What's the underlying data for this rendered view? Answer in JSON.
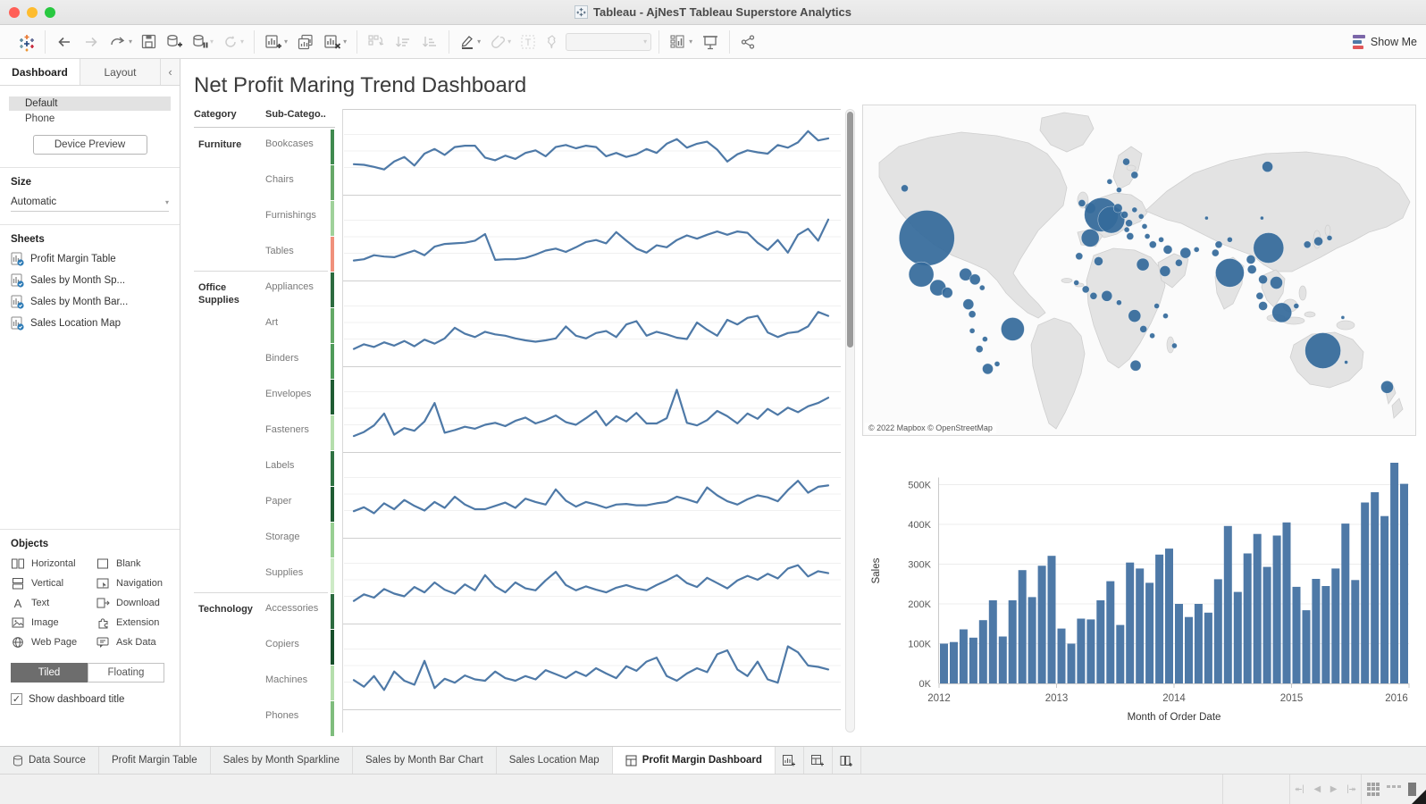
{
  "window": {
    "title": "Tableau - AjNesT Tableau Superstore Analytics"
  },
  "toolbar": {
    "show_me": "Show Me"
  },
  "sidebar": {
    "tabs": [
      {
        "label": "Dashboard",
        "active": true
      },
      {
        "label": "Layout",
        "active": false
      }
    ],
    "collapse_icon": "‹",
    "device": {
      "default_label": "Default",
      "phone_label": "Phone",
      "preview_button": "Device Preview"
    },
    "size": {
      "label": "Size",
      "value": "Automatic"
    },
    "sheets": {
      "label": "Sheets",
      "items": [
        "Profit Margin Table",
        "Sales by Month Sp...",
        "Sales by Month Bar...",
        "Sales Location Map"
      ]
    },
    "objects": {
      "label": "Objects",
      "items": [
        {
          "icon": "horizontal",
          "label": "Horizontal"
        },
        {
          "icon": "blank",
          "label": "Blank"
        },
        {
          "icon": "vertical",
          "label": "Vertical"
        },
        {
          "icon": "navigation",
          "label": "Navigation"
        },
        {
          "icon": "text",
          "label": "Text"
        },
        {
          "icon": "download",
          "label": "Download"
        },
        {
          "icon": "image",
          "label": "Image"
        },
        {
          "icon": "extension",
          "label": "Extension"
        },
        {
          "icon": "webpage",
          "label": "Web Page"
        },
        {
          "icon": "askdata",
          "label": "Ask Data"
        }
      ]
    },
    "tiled_label": "Tiled",
    "floating_label": "Floating",
    "show_title_label": "Show dashboard title"
  },
  "dashboard": {
    "title": "Net Profit Maring Trend Dashboard",
    "table": {
      "col1": "Category",
      "col2": "Sub-Catego..",
      "groups": [
        {
          "category": "Furniture",
          "subs": [
            {
              "name": "Bookcases",
              "strip": "#3f8a4f"
            },
            {
              "name": "Chairs",
              "strip": "#66a868"
            },
            {
              "name": "Furnishings",
              "strip": "#9fd19a"
            },
            {
              "name": "Tables",
              "strip": "#f0907b"
            }
          ]
        },
        {
          "category": "Office Supplies",
          "subs": [
            {
              "name": "Appliances",
              "strip": "#2c6b3f"
            },
            {
              "name": "Art",
              "strip": "#63a966"
            },
            {
              "name": "Binders",
              "strip": "#4f9b59"
            },
            {
              "name": "Envelopes",
              "strip": "#1f5c33"
            },
            {
              "name": "Fasteners",
              "strip": "#b5deac"
            },
            {
              "name": "Labels",
              "strip": "#2f7242"
            },
            {
              "name": "Paper",
              "strip": "#1f5c33"
            },
            {
              "name": "Storage",
              "strip": "#98cf92"
            },
            {
              "name": "Supplies",
              "strip": "#cdeac6"
            }
          ]
        },
        {
          "category": "Technology",
          "subs": [
            {
              "name": "Accessories",
              "strip": "#2c6b3f"
            },
            {
              "name": "Copiers",
              "strip": "#174f2b"
            },
            {
              "name": "Machines",
              "strip": "#b5deac"
            },
            {
              "name": "Phones",
              "strip": "#7fbd7d"
            }
          ]
        }
      ]
    }
  },
  "chart_data": [
    {
      "type": "line",
      "name": "profit-margin-sparklines",
      "color": "#4e79a7",
      "x_range": "monthly 2012-2015",
      "grid": true,
      "series": [
        {
          "name": "band-1",
          "values": [
            30,
            29,
            26,
            22,
            34,
            41,
            28,
            46,
            53,
            44,
            56,
            58,
            58,
            40,
            36,
            43,
            38,
            47,
            51,
            42,
            56,
            59,
            54,
            58,
            56,
            42,
            47,
            41,
            45,
            53,
            47,
            61,
            68,
            55,
            61,
            64,
            52,
            34,
            45,
            51,
            48,
            46,
            59,
            55,
            63,
            80,
            66,
            69
          ]
        },
        {
          "name": "band-2",
          "values": [
            14,
            16,
            22,
            20,
            19,
            24,
            29,
            22,
            35,
            39,
            40,
            41,
            44,
            54,
            15,
            16,
            16,
            18,
            23,
            29,
            32,
            27,
            34,
            42,
            45,
            40,
            57,
            44,
            32,
            26,
            37,
            34,
            45,
            52,
            47,
            53,
            58,
            53,
            58,
            56,
            41,
            30,
            45,
            26,
            53,
            62,
            44,
            76
          ]
        },
        {
          "name": "band-3",
          "values": [
            10,
            17,
            13,
            20,
            15,
            22,
            14,
            24,
            18,
            26,
            42,
            33,
            28,
            36,
            32,
            30,
            26,
            23,
            21,
            23,
            26,
            44,
            30,
            26,
            34,
            37,
            28,
            47,
            52,
            30,
            36,
            32,
            27,
            25,
            50,
            39,
            30,
            54,
            47,
            57,
            60,
            35,
            28,
            34,
            36,
            44,
            66,
            60
          ]
        },
        {
          "name": "band-4",
          "values": [
            8,
            14,
            24,
            42,
            10,
            20,
            16,
            30,
            58,
            13,
            17,
            22,
            19,
            25,
            28,
            23,
            31,
            36,
            27,
            32,
            39,
            29,
            25,
            35,
            46,
            24,
            38,
            30,
            43,
            27,
            27,
            35,
            78,
            28,
            24,
            32,
            46,
            38,
            27,
            42,
            34,
            49,
            40,
            51,
            44,
            53,
            58,
            66
          ]
        },
        {
          "name": "band-5",
          "values": [
            24,
            30,
            21,
            36,
            27,
            41,
            32,
            25,
            38,
            29,
            46,
            34,
            27,
            27,
            32,
            37,
            29,
            43,
            38,
            34,
            57,
            40,
            31,
            38,
            34,
            29,
            34,
            35,
            33,
            33,
            36,
            38,
            46,
            42,
            37,
            60,
            48,
            39,
            34,
            42,
            48,
            45,
            39,
            56,
            70,
            52,
            61,
            63
          ]
        },
        {
          "name": "band-6",
          "values": [
            18,
            28,
            23,
            36,
            29,
            25,
            39,
            31,
            46,
            35,
            29,
            43,
            34,
            57,
            40,
            31,
            46,
            37,
            34,
            49,
            62,
            42,
            34,
            40,
            35,
            31,
            38,
            42,
            37,
            34,
            42,
            49,
            57,
            45,
            39,
            53,
            45,
            37,
            49,
            56,
            50,
            59,
            52,
            67,
            72,
            55,
            63,
            60
          ]
        },
        {
          "name": "band-7",
          "values": [
            28,
            18,
            34,
            13,
            41,
            27,
            21,
            57,
            16,
            30,
            24,
            35,
            29,
            27,
            41,
            31,
            27,
            34,
            29,
            43,
            37,
            31,
            41,
            34,
            46,
            38,
            31,
            49,
            42,
            56,
            62,
            34,
            27,
            38,
            46,
            40,
            67,
            73,
            44,
            34,
            56,
            29,
            24,
            79,
            70,
            50,
            48,
            44
          ]
        },
        {
          "name": "band-8",
          "values": [
            20,
            25,
            18,
            30,
            22,
            35,
            28,
            20,
            32,
            26,
            40,
            30,
            24,
            28,
            33,
            30,
            26,
            38,
            34,
            30,
            45,
            36,
            28,
            34,
            30,
            26,
            32,
            34,
            30,
            30,
            34,
            36,
            42,
            38,
            34,
            52,
            44,
            36,
            30,
            38,
            44,
            40,
            36,
            50,
            62,
            46,
            54,
            56
          ]
        }
      ]
    },
    {
      "type": "scatter",
      "name": "sales-location-map",
      "bubble_color": "#356b9b",
      "attribution": "© 2022 Mapbox © OpenStreetMap",
      "bubbles": [
        [
          11.5,
          40,
          31
        ],
        [
          7.5,
          25,
          4
        ],
        [
          10.5,
          51,
          14
        ],
        [
          13.5,
          55,
          9
        ],
        [
          15.2,
          56.5,
          6
        ],
        [
          18.5,
          51,
          7
        ],
        [
          20.2,
          52.5,
          6
        ],
        [
          21.5,
          55,
          3
        ],
        [
          19,
          60,
          6
        ],
        [
          19.7,
          63,
          4
        ],
        [
          19.7,
          68,
          3
        ],
        [
          27,
          67.5,
          13
        ],
        [
          22,
          70.5,
          3
        ],
        [
          21,
          73.5,
          4
        ],
        [
          22.5,
          79.5,
          6
        ],
        [
          24.2,
          78,
          3
        ],
        [
          41,
          31,
          6
        ],
        [
          39.5,
          29.5,
          4
        ],
        [
          43,
          33,
          19
        ],
        [
          44.8,
          34.5,
          15
        ],
        [
          41,
          40,
          10
        ],
        [
          46,
          31,
          5
        ],
        [
          47.2,
          33,
          4
        ],
        [
          48,
          35.5,
          4
        ],
        [
          47.6,
          37.5,
          3
        ],
        [
          49,
          31.5,
          3
        ],
        [
          50.2,
          33.5,
          3
        ],
        [
          48.2,
          39.5,
          4
        ],
        [
          50.8,
          36.5,
          3
        ],
        [
          51.3,
          39.5,
          3
        ],
        [
          52.3,
          42,
          4
        ],
        [
          53.8,
          40.5,
          3
        ],
        [
          47.5,
          17,
          4
        ],
        [
          49,
          21,
          4
        ],
        [
          44.5,
          23,
          3
        ],
        [
          46.2,
          25.5,
          3
        ],
        [
          73,
          18.5,
          6
        ],
        [
          39,
          45.5,
          4
        ],
        [
          42.5,
          47,
          5
        ],
        [
          50.5,
          48,
          7
        ],
        [
          54.5,
          50,
          6
        ],
        [
          57,
          47.5,
          4
        ],
        [
          55,
          43.5,
          5
        ],
        [
          58.2,
          44.5,
          6
        ],
        [
          60.2,
          43.5,
          3
        ],
        [
          38.5,
          53.5,
          3
        ],
        [
          40.2,
          55.5,
          4
        ],
        [
          41.6,
          57.5,
          4
        ],
        [
          44,
          57.5,
          6
        ],
        [
          46.2,
          59.5,
          3
        ],
        [
          49,
          63.5,
          7
        ],
        [
          53,
          60.5,
          3
        ],
        [
          54.6,
          63.5,
          3
        ],
        [
          50.6,
          67.5,
          4
        ],
        [
          52.2,
          69.5,
          3
        ],
        [
          49.2,
          78.5,
          6
        ],
        [
          56.2,
          72.5,
          3
        ],
        [
          62,
          34,
          2
        ],
        [
          64.2,
          42,
          4
        ],
        [
          66.2,
          40.5,
          3
        ],
        [
          63.6,
          44.5,
          4
        ],
        [
          66.2,
          50.5,
          16
        ],
        [
          70,
          46.5,
          5
        ],
        [
          73.2,
          43,
          17
        ],
        [
          72,
          34,
          2
        ],
        [
          70.2,
          49.5,
          5
        ],
        [
          72.2,
          52.5,
          5
        ],
        [
          74.6,
          53.5,
          7
        ],
        [
          71.6,
          57.5,
          4
        ],
        [
          72.2,
          60.5,
          5
        ],
        [
          75.6,
          62.5,
          11
        ],
        [
          78.2,
          60.5,
          3
        ],
        [
          80.2,
          42,
          4
        ],
        [
          82.2,
          41,
          5
        ],
        [
          84.2,
          40,
          3
        ],
        [
          86.6,
          64,
          2
        ],
        [
          83,
          74,
          20
        ],
        [
          94.6,
          85,
          7
        ],
        [
          87.2,
          77.5,
          2
        ]
      ]
    },
    {
      "type": "bar",
      "name": "sales-by-month",
      "bar_color": "#4e79a7",
      "title": "",
      "xlabel": "Month of Order Date",
      "ylabel": "Sales",
      "yticks": [
        "0K",
        "100K",
        "200K",
        "300K",
        "400K",
        "500K"
      ],
      "ylim": [
        0,
        560
      ],
      "grid": true,
      "x_year_labels": [
        "2012",
        "2013",
        "2014",
        "2015",
        "2016"
      ],
      "values_thousands": [
        100,
        104,
        136,
        115,
        159,
        209,
        118,
        209,
        285,
        217,
        296,
        321,
        138,
        100,
        163,
        161,
        209,
        257,
        147,
        304,
        289,
        253,
        324,
        339,
        200,
        167,
        200,
        178,
        262,
        396,
        230,
        327,
        376,
        293,
        372,
        405,
        243,
        184,
        263,
        245,
        289,
        402,
        260,
        455,
        481,
        421,
        555,
        502
      ]
    }
  ],
  "tabbar": {
    "tabs": [
      {
        "label": "Data Source",
        "icon": "datasource",
        "active": false
      },
      {
        "label": "Profit Margin Table",
        "active": false
      },
      {
        "label": "Sales by Month Sparkline",
        "active": false
      },
      {
        "label": "Sales by Month Bar Chart",
        "active": false
      },
      {
        "label": "Sales Location Map",
        "active": false
      },
      {
        "label": "Profit Margin Dashboard",
        "icon": "dashboard-grid",
        "active": true
      }
    ]
  }
}
